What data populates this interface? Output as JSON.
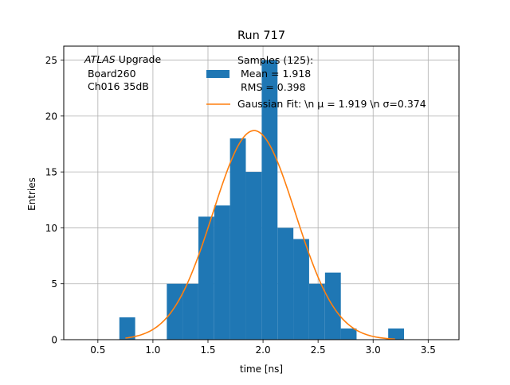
{
  "chart_data": {
    "type": "bar",
    "title": "Run 717",
    "xlabel": "time [ns]",
    "ylabel": "Entries",
    "xlim": [
      0.19,
      3.78
    ],
    "ylim": [
      0,
      26.25
    ],
    "grid": true,
    "x_ticks": [
      0.5,
      1.0,
      1.5,
      2.0,
      2.5,
      3.0,
      3.5
    ],
    "x_tick_labels": [
      "0.5",
      "1.0",
      "1.5",
      "2.0",
      "2.5",
      "3.0",
      "3.5"
    ],
    "y_ticks": [
      0,
      5,
      10,
      15,
      20,
      25
    ],
    "y_tick_labels": [
      "0",
      "5",
      "10",
      "15",
      "20",
      "25"
    ],
    "bin_width": 0.1437,
    "bins": [
      {
        "x0": 0.695,
        "count": 2
      },
      {
        "x0": 1.126,
        "count": 5
      },
      {
        "x0": 1.269,
        "count": 5
      },
      {
        "x0": 1.413,
        "count": 11
      },
      {
        "x0": 1.557,
        "count": 12
      },
      {
        "x0": 1.7,
        "count": 18
      },
      {
        "x0": 1.844,
        "count": 15
      },
      {
        "x0": 1.988,
        "count": 25
      },
      {
        "x0": 2.132,
        "count": 10
      },
      {
        "x0": 2.275,
        "count": 9
      },
      {
        "x0": 2.419,
        "count": 5
      },
      {
        "x0": 2.563,
        "count": 6
      },
      {
        "x0": 2.706,
        "count": 1
      },
      {
        "x0": 3.137,
        "count": 1
      }
    ],
    "fit": {
      "mu": 1.919,
      "sigma": 0.374,
      "amplitude": 18.7,
      "x_range": [
        0.75,
        3.2
      ]
    },
    "series": [
      {
        "name": "Samples (125):\n Mean = 1.918\n RMS = 0.398",
        "color": "#1f77b4"
      },
      {
        "name": "Gaussian Fit: \\n μ = 1.919 \\n σ=0.374",
        "color": "#ff7f0e"
      }
    ],
    "legend_position": "top-right",
    "annotation": {
      "line1_italic": "ATLAS",
      "line1_rest": " Upgrade",
      "line2": " Board260",
      "line3": " Ch016 35dB"
    }
  }
}
